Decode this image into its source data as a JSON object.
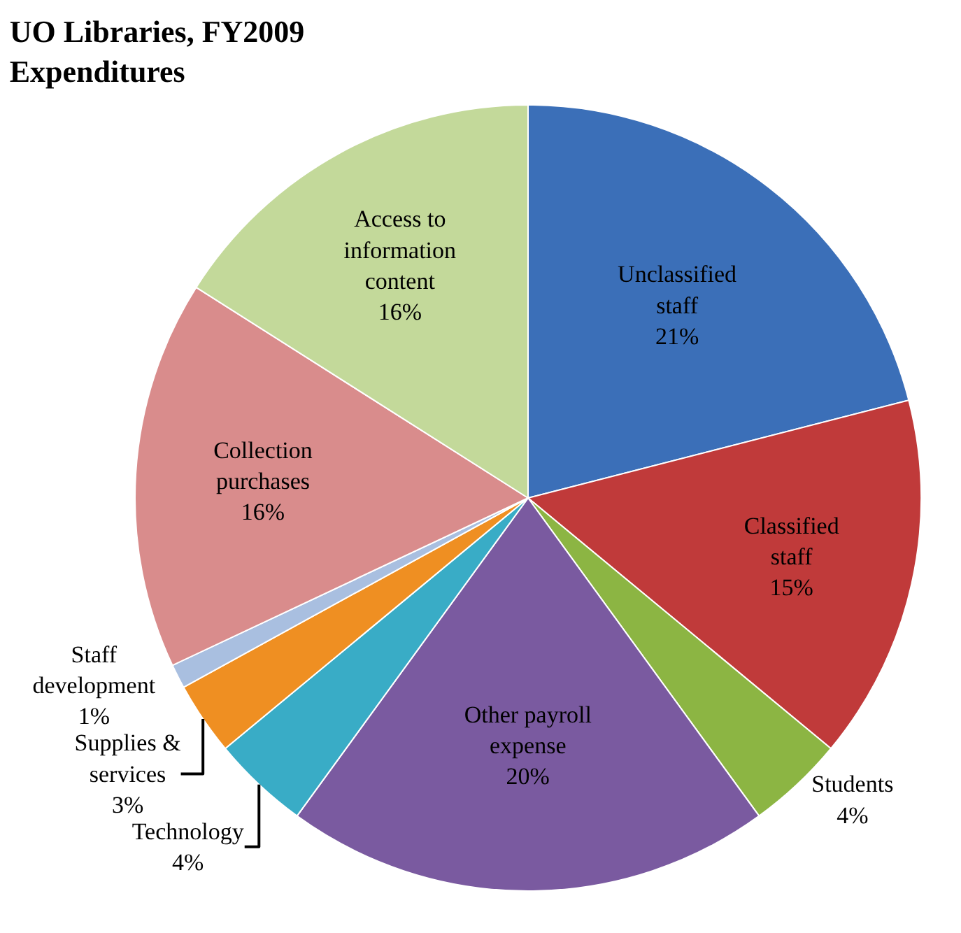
{
  "chart_data": {
    "type": "pie",
    "title": "UO Libraries, FY2009 Expenditures",
    "categories": [
      "Unclassified staff",
      "Classified staff",
      "Students",
      "Other payroll expense",
      "Technology",
      "Supplies & services",
      "Staff development",
      "Collection purchases",
      "Access to information content"
    ],
    "values": [
      21,
      15,
      4,
      20,
      4,
      3,
      1,
      16,
      16
    ],
    "value_labels": [
      "21%",
      "15%",
      "4%",
      "20%",
      "4%",
      "3%",
      "1%",
      "16%",
      "16%"
    ],
    "colors": [
      "#3b6fb8",
      "#c03a3a",
      "#8cb543",
      "#7a5aa0",
      "#39acc6",
      "#ef8f22",
      "#a9bfe0",
      "#d98c8c",
      "#c3d99a"
    ],
    "legend": false
  }
}
